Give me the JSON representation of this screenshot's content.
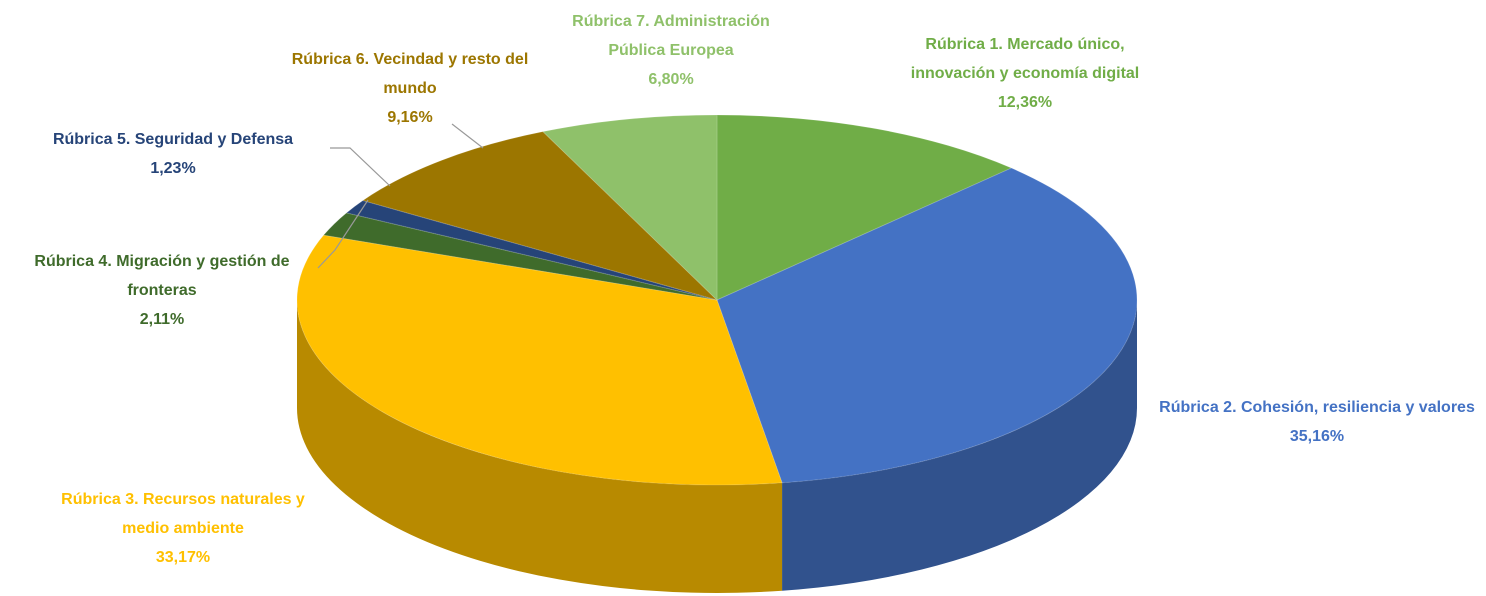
{
  "chart_data": {
    "type": "pie",
    "categories": [
      "Rúbrica 1. Mercado único, innovación y economía digital",
      "Rúbrica 2. Cohesión, resiliencia y valores",
      "Rúbrica 3. Recursos naturales y medio ambiente",
      "Rúbrica 4. Migración y gestión de fronteras",
      "Rúbrica 5. Seguridad y Defensa",
      "Rúbrica 6. Vecindad y resto del mundo",
      "Rúbrica 7. Administración Pública Europea"
    ],
    "values": [
      12.36,
      35.16,
      33.17,
      2.11,
      1.23,
      9.16,
      6.8
    ],
    "value_labels": [
      "12,36%",
      "35,16%",
      "33,17%",
      "2,11%",
      "1,23%",
      "9,16%",
      "6,80%"
    ],
    "colors": [
      "#70ad47",
      "#4472c4",
      "#ffc000",
      "#3f6b2b",
      "#264478",
      "#9c7600",
      "#8fc16a"
    ]
  }
}
